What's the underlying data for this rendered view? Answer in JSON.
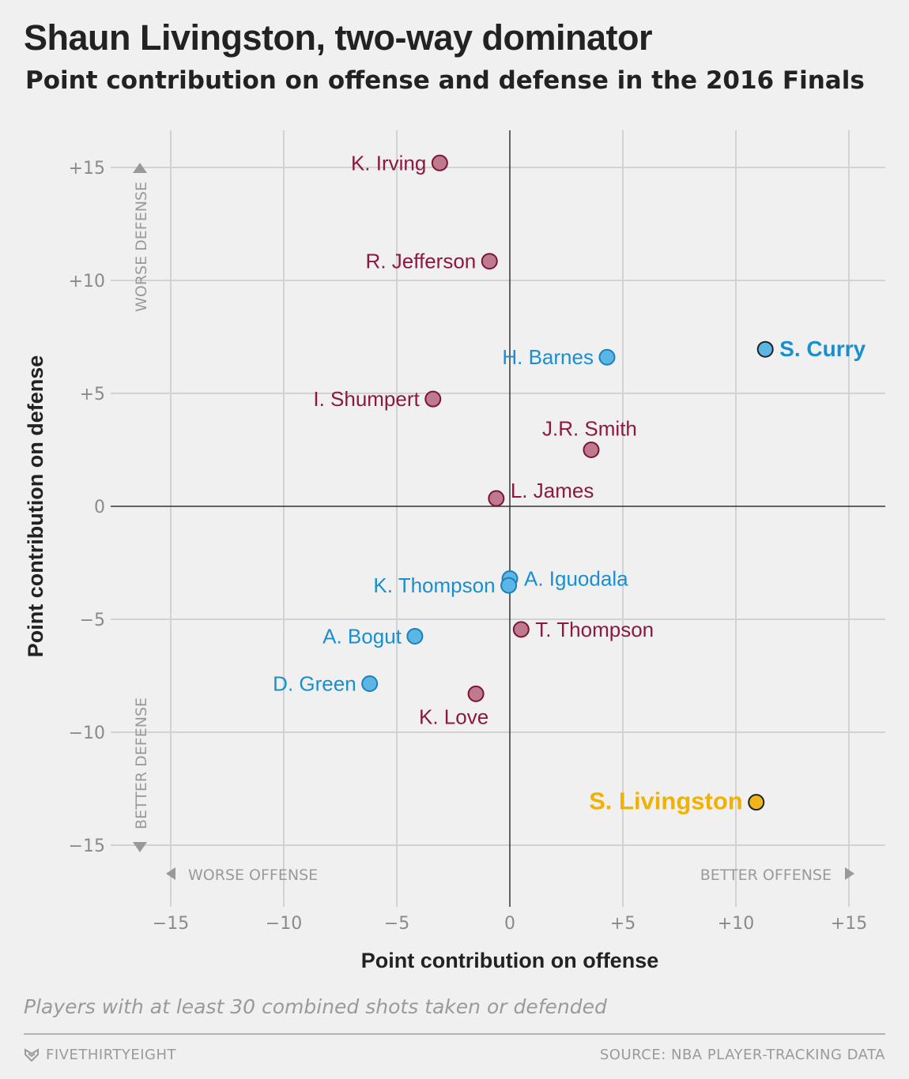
{
  "header": {
    "title": "Shaun Livingston, two-way dominator",
    "subtitle": "Point contribution on offense and defense in the 2016 Finals"
  },
  "chart_data": {
    "type": "scatter",
    "xlabel": "Point contribution on offense",
    "ylabel": "Point contribution on defense",
    "xlim": [
      -16.5,
      16.5
    ],
    "ylim": [
      -16.5,
      16.3
    ],
    "x_ticks": [
      -15,
      -10,
      -5,
      0,
      5,
      10,
      15
    ],
    "x_tick_labels": [
      "−15",
      "−10",
      "−5",
      "0",
      "+5",
      "+10",
      "+15"
    ],
    "y_ticks": [
      15,
      10,
      5,
      0,
      -5,
      -10,
      -15
    ],
    "y_tick_labels": [
      "+15",
      "+10",
      "+5",
      "0",
      "−5",
      "−10",
      "−15"
    ],
    "grid": true,
    "annotations": {
      "worse_defense": "WORSE DEFENSE",
      "better_defense": "BETTER DEFENSE",
      "worse_offense": "WORSE OFFENSE",
      "better_offense": "BETTER OFFENSE"
    },
    "colors": {
      "cavaliers_text": "#8b1a3e",
      "cavaliers_fill": "#c07a8e",
      "cavaliers_stroke": "#7a1535",
      "warriors_text": "#1a8fd0",
      "warriors_fill": "#5bb6e3",
      "warriors_stroke": "#1a7fbf",
      "highlight_text": "#f0b100",
      "highlight_fill": "#f0b41c",
      "outline_dark": "#222222"
    },
    "points": [
      {
        "label": "K. Irving",
        "x": -3.1,
        "y": 15.2,
        "team": "cavaliers",
        "label_pos": "left"
      },
      {
        "label": "R. Jefferson",
        "x": -0.9,
        "y": 10.85,
        "team": "cavaliers",
        "label_pos": "left"
      },
      {
        "label": "H. Barnes",
        "x": 4.3,
        "y": 6.6,
        "team": "warriors",
        "label_pos": "left"
      },
      {
        "label": "S. Curry",
        "x": 11.3,
        "y": 6.95,
        "team": "warriors",
        "label_pos": "right",
        "bold": true,
        "dark_outline": true
      },
      {
        "label": "I. Shumpert",
        "x": -3.4,
        "y": 4.75,
        "team": "cavaliers",
        "label_pos": "left"
      },
      {
        "label": "J.R. Smith",
        "x": 3.6,
        "y": 2.5,
        "team": "cavaliers",
        "label_pos": "above"
      },
      {
        "label": "L. James",
        "x": -0.6,
        "y": 0.35,
        "team": "cavaliers",
        "label_pos": "right-up"
      },
      {
        "label": "A. Iguodala",
        "x": 0.0,
        "y": -3.2,
        "team": "warriors",
        "label_pos": "right"
      },
      {
        "label": "K. Thompson",
        "x": -0.05,
        "y": -3.5,
        "team": "warriors",
        "label_pos": "left"
      },
      {
        "label": "T. Thompson",
        "x": 0.5,
        "y": -5.45,
        "team": "cavaliers",
        "label_pos": "right"
      },
      {
        "label": "A. Bogut",
        "x": -4.2,
        "y": -5.75,
        "team": "warriors",
        "label_pos": "left"
      },
      {
        "label": "D. Green",
        "x": -6.2,
        "y": -7.85,
        "team": "warriors",
        "label_pos": "left"
      },
      {
        "label": "K. Love",
        "x": -1.5,
        "y": -8.3,
        "team": "cavaliers",
        "label_pos": "below"
      },
      {
        "label": "S. Livingston",
        "x": 10.9,
        "y": -13.1,
        "team": "highlight",
        "label_pos": "left",
        "bold": true,
        "dark_outline": true
      }
    ]
  },
  "footnote": "Players with at least 30 combined shots taken or defended",
  "footer": {
    "brand": "FIVETHIRTYEIGHT",
    "brand_icon": "fivethirtyeight-logo-icon",
    "source": "SOURCE: NBA PLAYER-TRACKING DATA"
  }
}
